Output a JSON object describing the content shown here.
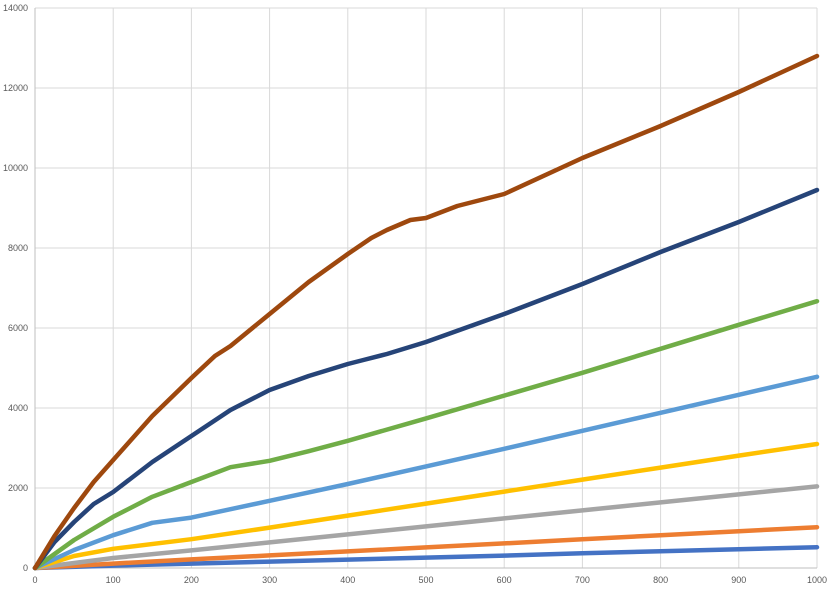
{
  "chart_data": {
    "type": "line",
    "title": "",
    "xlabel": "",
    "ylabel": "",
    "xlim": [
      0,
      1000
    ],
    "ylim": [
      0,
      14000
    ],
    "x_ticks": [
      0,
      100,
      200,
      300,
      400,
      500,
      600,
      700,
      800,
      900,
      1000
    ],
    "y_ticks": [
      0,
      2000,
      4000,
      6000,
      8000,
      10000,
      12000,
      14000
    ],
    "grid": true,
    "legend": "none",
    "series": [
      {
        "color": "#4472c4",
        "x": [
          0,
          100,
          200,
          300,
          400,
          500,
          600,
          700,
          800,
          900,
          1000
        ],
        "y": [
          0,
          60,
          110,
          160,
          210,
          260,
          310,
          370,
          420,
          470,
          520
        ]
      },
      {
        "color": "#ed7d31",
        "x": [
          0,
          100,
          200,
          300,
          400,
          500,
          600,
          700,
          800,
          900,
          1000
        ],
        "y": [
          0,
          110,
          215,
          315,
          415,
          515,
          615,
          720,
          820,
          920,
          1020
        ]
      },
      {
        "color": "#a5a5a5",
        "x": [
          0,
          100,
          200,
          300,
          400,
          500,
          600,
          700,
          800,
          900,
          1000
        ],
        "y": [
          0,
          250,
          440,
          640,
          840,
          1040,
          1240,
          1440,
          1640,
          1840,
          2040
        ]
      },
      {
        "color": "#ffc000",
        "x": [
          0,
          50,
          100,
          200,
          300,
          400,
          500,
          600,
          700,
          800,
          900,
          1000
        ],
        "y": [
          0,
          300,
          480,
          720,
          1010,
          1310,
          1610,
          1910,
          2210,
          2510,
          2810,
          3100
        ]
      },
      {
        "color": "#5b9bd5",
        "x": [
          0,
          50,
          100,
          150,
          200,
          250,
          300,
          350,
          400,
          500,
          600,
          700,
          800,
          900,
          1000
        ],
        "y": [
          0,
          450,
          820,
          1130,
          1260,
          1470,
          1680,
          1890,
          2100,
          2540,
          2980,
          3430,
          3880,
          4330,
          4780
        ]
      },
      {
        "color": "#70ad47",
        "x": [
          0,
          50,
          100,
          150,
          200,
          250,
          300,
          350,
          400,
          500,
          600,
          700,
          800,
          900,
          1000
        ],
        "y": [
          0,
          700,
          1280,
          1780,
          2150,
          2520,
          2680,
          2920,
          3180,
          3740,
          4310,
          4880,
          5480,
          6080,
          6670
        ]
      },
      {
        "color": "#264478",
        "x": [
          0,
          25,
          50,
          75,
          100,
          150,
          200,
          250,
          270,
          300,
          350,
          400,
          420,
          450,
          500,
          600,
          700,
          800,
          900,
          1000
        ],
        "y": [
          0,
          650,
          1150,
          1600,
          1900,
          2650,
          3300,
          3950,
          4150,
          4450,
          4800,
          5100,
          5200,
          5350,
          5650,
          6350,
          7100,
          7900,
          8650,
          9450
        ]
      },
      {
        "color": "#9e480e",
        "x": [
          0,
          25,
          50,
          75,
          100,
          150,
          200,
          230,
          250,
          300,
          350,
          400,
          430,
          450,
          480,
          500,
          540,
          560,
          600,
          700,
          800,
          900,
          1000
        ],
        "y": [
          0,
          800,
          1500,
          2150,
          2700,
          3800,
          4750,
          5300,
          5550,
          6350,
          7150,
          7850,
          8250,
          8450,
          8700,
          8750,
          9050,
          9150,
          9350,
          10250,
          11050,
          11900,
          12800
        ]
      }
    ]
  }
}
